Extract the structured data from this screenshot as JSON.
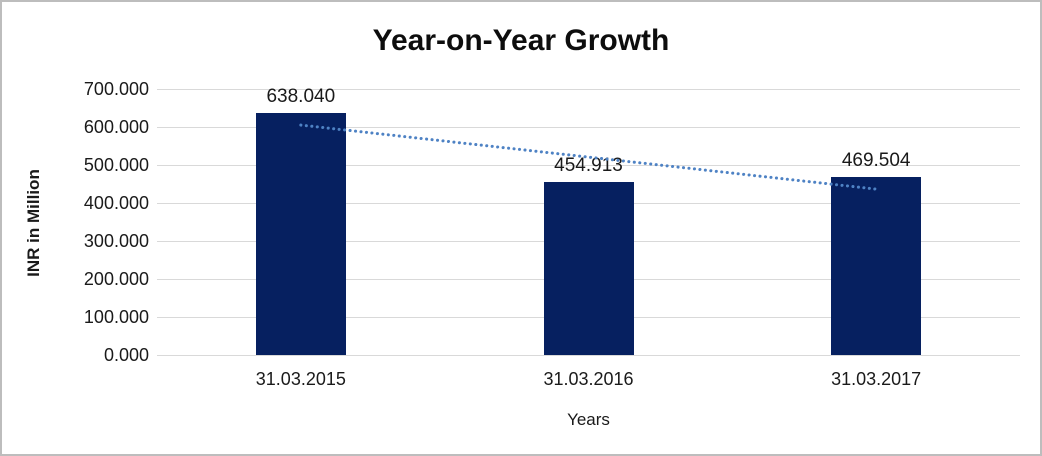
{
  "window": {
    "background": "#ffffff",
    "border_color": "#bdbdbd"
  },
  "chart_data": {
    "type": "bar",
    "title": "Year-on-Year Growth",
    "xlabel": "Years",
    "ylabel": "INR in Million",
    "categories": [
      "31.03.2015",
      "31.03.2016",
      "31.03.2017"
    ],
    "values": [
      638.04,
      454.913,
      469.504
    ],
    "value_labels": [
      "638.040",
      "454.913",
      "469.504"
    ],
    "ylim": [
      0,
      700
    ],
    "y_ticks": [
      "0.000",
      "100.000",
      "200.000",
      "300.000",
      "400.000",
      "500.000",
      "600.000",
      "700.000"
    ],
    "grid": true,
    "legend": false,
    "colors": {
      "bar": "#062060",
      "gridline": "#d9d9d9",
      "trendline": "#4e82c4",
      "text": "#1a1a1a"
    },
    "trendline": {
      "type": "linear",
      "style": "dotted",
      "start_value": 605.1,
      "end_value": 436.5
    }
  }
}
